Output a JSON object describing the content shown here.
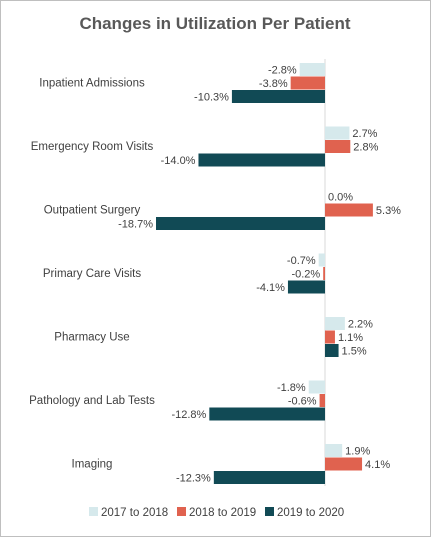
{
  "chart_data": {
    "type": "bar",
    "orientation": "horizontal",
    "title": "Changes in Utilization Per Patient",
    "categories": [
      "Inpatient Admissions",
      "Emergency Room Visits",
      "Outpatient Surgery",
      "Primary Care Visits",
      "Pharmacy Use",
      "Pathology and Lab Tests",
      "Imaging"
    ],
    "series": [
      {
        "name": "2017 to 2018",
        "color": "#d6e9ec",
        "values": [
          -2.8,
          2.7,
          0.0,
          -0.7,
          2.2,
          -1.8,
          1.9
        ],
        "labels": [
          "-2.8%",
          "2.7%",
          "0.0%",
          "-0.7%",
          "2.2%",
          "-1.8%",
          "1.9%"
        ]
      },
      {
        "name": "2018 to 2019",
        "color": "#e0624f",
        "values": [
          -3.8,
          2.8,
          5.3,
          -0.2,
          1.1,
          -0.6,
          4.1
        ],
        "labels": [
          "-3.8%",
          "2.8%",
          "5.3%",
          "-0.2%",
          "1.1%",
          "-0.6%",
          "4.1%"
        ]
      },
      {
        "name": "2019 to 2020",
        "color": "#114a55",
        "values": [
          -10.3,
          -14.0,
          -18.7,
          -4.1,
          1.5,
          -12.8,
          -12.3
        ],
        "labels": [
          "-10.3%",
          "-14.0%",
          "-18.7%",
          "-4.1%",
          "1.5%",
          "-12.8%",
          "-12.3%"
        ]
      }
    ],
    "xlim": [
      -18.7,
      5.3
    ],
    "axis_line_color": "#d9d9d9",
    "legend_position": "bottom",
    "gridlines": false
  }
}
